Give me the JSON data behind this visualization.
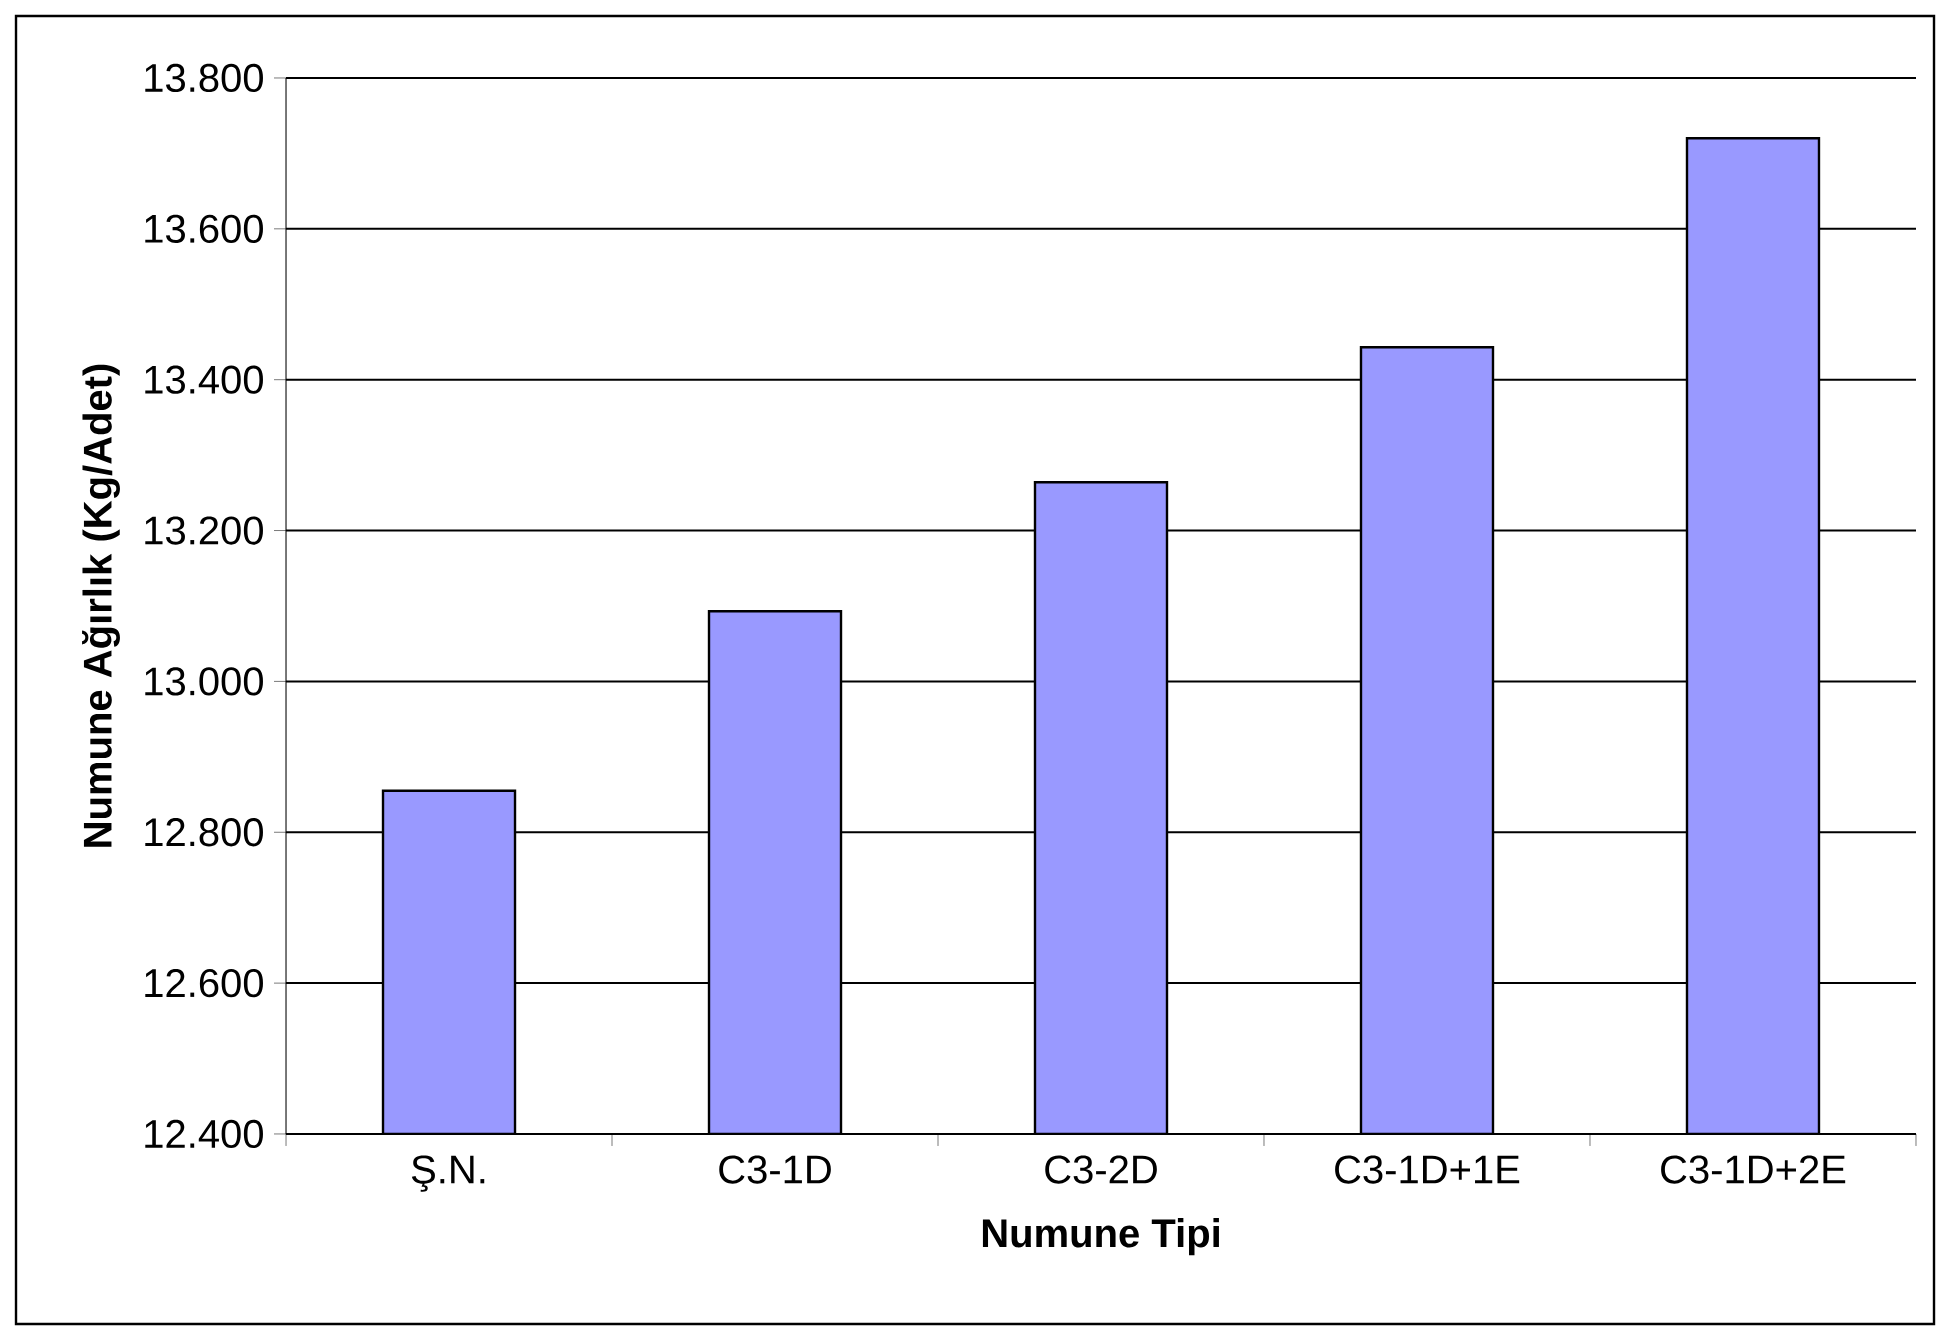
{
  "chart_data": {
    "type": "bar",
    "xlabel": "Numune Tipi",
    "ylabel": "Numune Ağırlık (Kg/Adet)",
    "categories": [
      "Ş.N.",
      "C3-1D",
      "C3-2D",
      "C3-1D+1E",
      "C3-1D+2E"
    ],
    "values": [
      12.855,
      13.093,
      13.264,
      13.443,
      13.72
    ],
    "color": "#9999ff",
    "ylim": [
      12.4,
      13.8
    ],
    "yticks": [
      {
        "value": 12.4,
        "label": "12.400"
      },
      {
        "value": 12.6,
        "label": "12.600"
      },
      {
        "value": 12.8,
        "label": "12.800"
      },
      {
        "value": 13.0,
        "label": "13.000"
      },
      {
        "value": 13.2,
        "label": "13.200"
      },
      {
        "value": 13.4,
        "label": "13.400"
      },
      {
        "value": 13.6,
        "label": "13.600"
      },
      {
        "value": 13.8,
        "label": "13.800"
      }
    ],
    "grid": "y"
  }
}
